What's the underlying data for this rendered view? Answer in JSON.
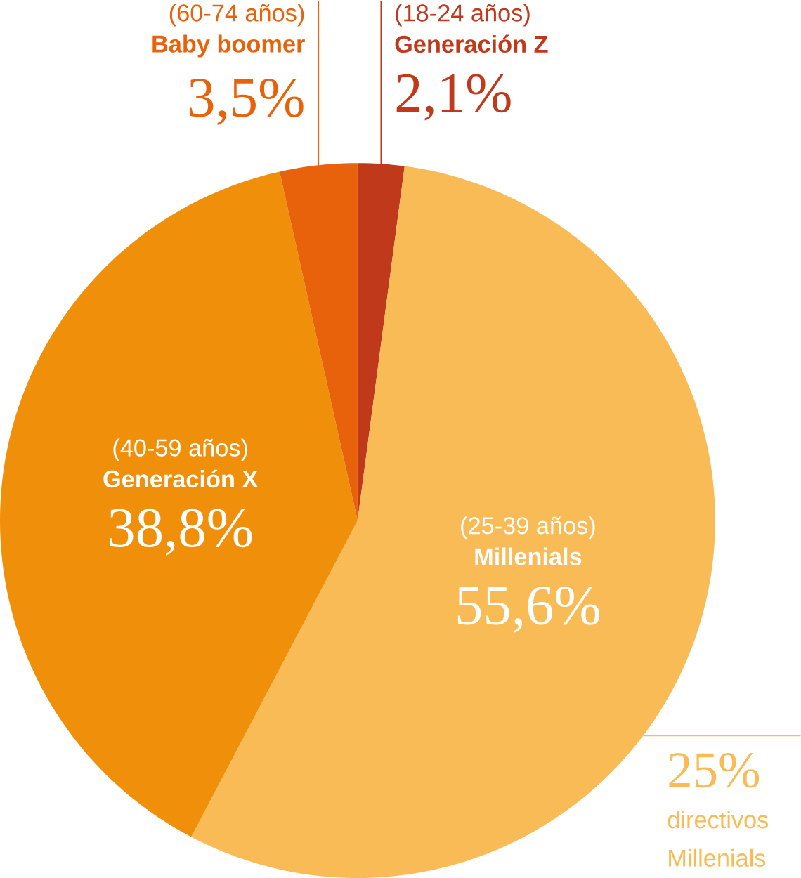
{
  "chart_data": {
    "type": "pie",
    "categories": [
      "Generación Z",
      "Millenials",
      "Generación X",
      "Baby boomer"
    ],
    "values": [
      2.1,
      55.6,
      38.8,
      3.5
    ],
    "colors": [
      "#c0391b",
      "#f9bb55",
      "#f0900a",
      "#e8620c"
    ],
    "value_labels": [
      "2,1%",
      "55,6%",
      "38,8%",
      "3,5%"
    ],
    "annotations": [
      "(18-24 años)",
      "(25-39 años)",
      "(40-59 años)",
      "(60-74 años)",
      "25%",
      "directivos Millenials"
    ]
  }
}
